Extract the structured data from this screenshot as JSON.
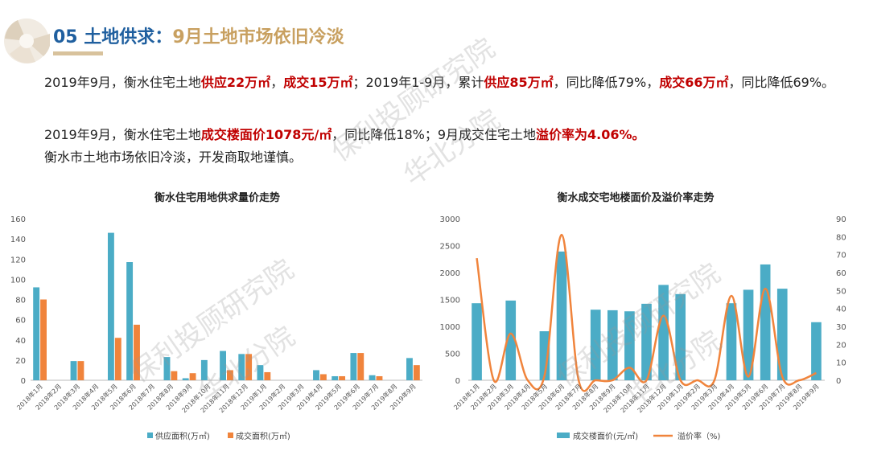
{
  "header": {
    "number": "05",
    "title": "土地供求：",
    "subtitle": "9月土地市场依旧冷淡"
  },
  "paragraphs": {
    "p1": [
      {
        "t": "2019年9月，衡水住宅土地",
        "h": false
      },
      {
        "t": "供应22万㎡",
        "h": true
      },
      {
        "t": "，",
        "h": false
      },
      {
        "t": "成交15万㎡",
        "h": true
      },
      {
        "t": "；2019年1-9月，累计",
        "h": false
      },
      {
        "t": "供应85万㎡",
        "h": true
      },
      {
        "t": "，同比降低79%，",
        "h": false
      },
      {
        "t": "成交66万㎡",
        "h": true
      },
      {
        "t": "，同比降低69%。",
        "h": false
      }
    ],
    "p2": [
      {
        "t": "2019年9月，衡水住宅土地",
        "h": false
      },
      {
        "t": "成交楼面价1078元/㎡",
        "h": true
      },
      {
        "t": "，同比降低18%；9月成交住宅土地",
        "h": false
      },
      {
        "t": "溢价率为4.06%。",
        "h": true
      }
    ],
    "p3": [
      {
        "t": "衡水市土地市场依旧冷淡，开发商取地谨慎。",
        "h": false
      }
    ]
  },
  "watermarks": {
    "top_line1": "保利投顾研究院",
    "top_line2": "华北分院",
    "left_line1": "保利投顾研究院",
    "left_line2": "华北分院",
    "right_line1": "保利投顾研究院",
    "right_line2": "华北分院"
  },
  "colors": {
    "teal": "#4bacc6",
    "orange": "#f0843c",
    "title_blue": "#1f5f9f",
    "gold": "#c8a060",
    "highlight": "#c00000"
  },
  "chart_data": [
    {
      "type": "bar",
      "title": "衡水住宅用地供求量价走势",
      "categories": [
        "2018年1月",
        "2018年2月",
        "2018年3月",
        "2018年4月",
        "2018年5月",
        "2018年6月",
        "2018年7月",
        "2018年8月",
        "2018年9月",
        "2018年10月",
        "2018年11月",
        "2018年12月",
        "2019年1月",
        "2019年2月",
        "2019年3月",
        "2019年4月",
        "2019年5月",
        "2019年6月",
        "2019年7月",
        "2019年8月",
        "2019年9月"
      ],
      "series": [
        {
          "name": "供应面积(万㎡)",
          "color": "#4bacc6",
          "values": [
            92,
            0,
            19,
            0,
            146,
            117,
            0,
            23,
            2,
            20,
            29,
            26,
            15,
            0,
            0,
            10,
            4,
            27,
            5,
            0,
            22
          ]
        },
        {
          "name": "成交面积(万㎡)",
          "color": "#f0843c",
          "values": [
            80,
            0,
            19,
            0,
            42,
            55,
            0,
            9,
            7,
            0,
            10,
            26,
            8,
            0,
            0,
            6,
            4,
            27,
            4,
            0,
            15
          ]
        }
      ],
      "yticks": [
        0,
        20,
        40,
        60,
        80,
        100,
        120,
        140,
        160
      ],
      "ylim": [
        0,
        160
      ],
      "grid": false,
      "legend": "bottom"
    },
    {
      "type": "bar+line",
      "title": "衡水成交宅地楼面价及溢价率走势",
      "categories": [
        "2018年1月",
        "2018年2月",
        "2018年3月",
        "2018年4月",
        "2018年5月",
        "2018年6月",
        "2018年7月",
        "2018年8月",
        "2018年9月",
        "2018年10月",
        "2018年11月",
        "2018年12月",
        "2019年1月",
        "2019年2月",
        "2019年3月",
        "2019年4月",
        "2019年5月",
        "2019年6月",
        "2019年7月",
        "2019年8月",
        "2019年9月"
      ],
      "series": [
        {
          "name": "成交楼面价(元/㎡)",
          "kind": "bar",
          "axis": "left",
          "color": "#4bacc6",
          "values": [
            1430,
            0,
            1480,
            0,
            910,
            2390,
            0,
            1310,
            1300,
            1280,
            1420,
            1770,
            1600,
            0,
            0,
            1430,
            1680,
            2150,
            1700,
            0,
            1078
          ]
        },
        {
          "name": "溢价率（%)",
          "kind": "line",
          "axis": "right",
          "color": "#f0843c",
          "values": [
            68,
            0,
            26,
            0,
            3,
            81,
            0,
            0,
            0,
            7,
            0,
            36,
            0,
            0,
            0,
            47,
            2,
            51,
            2,
            0,
            4.06
          ]
        }
      ],
      "yticks_left": [
        0,
        500,
        1000,
        1500,
        2000,
        2500,
        3000
      ],
      "ylim_left": [
        0,
        3000
      ],
      "yticks_right": [
        0,
        10,
        20,
        30,
        40,
        50,
        60,
        70,
        80,
        90
      ],
      "ylim_right": [
        0,
        90
      ],
      "grid": false,
      "legend": "bottom"
    }
  ]
}
